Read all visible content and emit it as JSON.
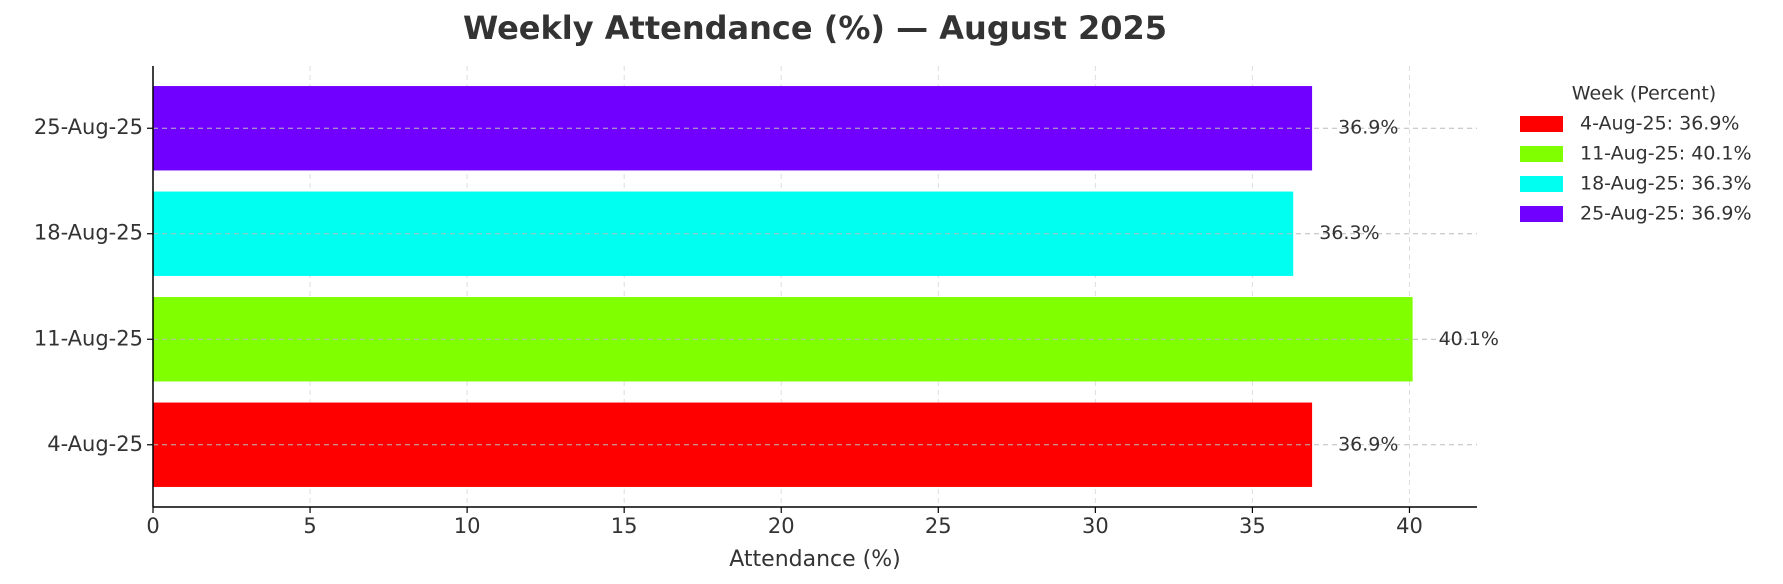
{
  "chart_data": {
    "type": "barh",
    "title": "Weekly Attendance (%) — August 2025",
    "x_label": "Attendance (%)",
    "categories": [
      "4-Aug-25",
      "11-Aug-25",
      "18-Aug-25",
      "25-Aug-25"
    ],
    "values": [
      36.9,
      40.1,
      36.3,
      36.9
    ],
    "value_labels": [
      "36.9%",
      "40.1%",
      "36.3%",
      "36.9%"
    ],
    "colors": [
      "#ff0000",
      "#80ff00",
      "#00fff0",
      "#7000ff"
    ],
    "xlim": [
      0,
      42.15
    ],
    "xticks": [
      0,
      5,
      10,
      15,
      20,
      25,
      30,
      35,
      40
    ],
    "grid": true,
    "legend": {
      "title": "Week (Percent)",
      "position": "upper right outside",
      "labels": [
        "4-Aug-25: 36.9%",
        "11-Aug-25: 40.1%",
        "18-Aug-25: 36.3%",
        "25-Aug-25: 36.9%"
      ]
    }
  }
}
